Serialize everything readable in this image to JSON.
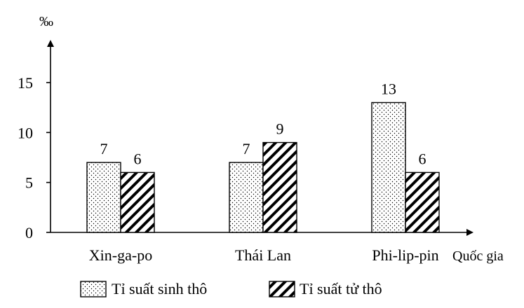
{
  "chart_data": {
    "type": "bar",
    "categories": [
      "Xin-ga-po",
      "Thái Lan",
      "Phi-lip-pin"
    ],
    "series": [
      {
        "name": "Tỉ suất sinh thô",
        "values": [
          7,
          7,
          13
        ],
        "pattern": "dots"
      },
      {
        "name": "Tỉ suất tử thô",
        "values": [
          6,
          9,
          6
        ],
        "pattern": "hatch"
      }
    ],
    "title": "",
    "ylabel": "‰",
    "xlabel": "Quốc gia",
    "yticks": [
      0,
      5,
      10,
      15
    ],
    "ylim": [
      0,
      15
    ],
    "grid": false,
    "legend_position": "bottom"
  }
}
